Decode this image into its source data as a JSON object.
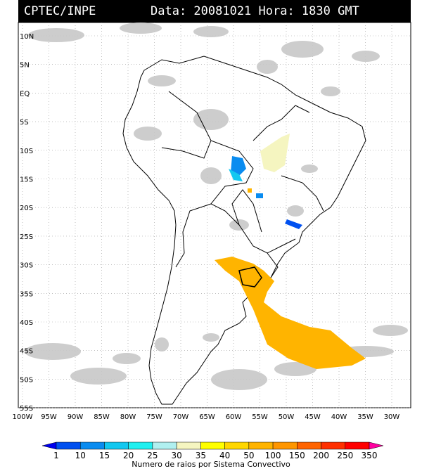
{
  "header": {
    "source": "CPTEC/INPE",
    "datetime": "Data: 20081021 Hora: 1830 GMT"
  },
  "axes": {
    "lat_labels": [
      "10N",
      "5N",
      "EQ",
      "5S",
      "10S",
      "15S",
      "20S",
      "25S",
      "30S",
      "35S",
      "40S",
      "45S",
      "50S",
      "55S"
    ],
    "lon_labels": [
      "100W",
      "95W",
      "90W",
      "85W",
      "80W",
      "75W",
      "70W",
      "65W",
      "60W",
      "55W",
      "50W",
      "45W",
      "40W",
      "35W",
      "30W"
    ]
  },
  "legend": {
    "title": "Numero de raios por Sistema Convectivo",
    "values": [
      "1",
      "10",
      "15",
      "20",
      "25",
      "30",
      "35",
      "40",
      "50",
      "100",
      "150",
      "200",
      "250",
      "350"
    ],
    "colors": [
      "#0000f0",
      "#0050f0",
      "#0a8cf0",
      "#12c8f0",
      "#20f0f0",
      "#b0f0f0",
      "#f5f5c0",
      "#ffff00",
      "#ffd700",
      "#ffb400",
      "#ff9600",
      "#ff6400",
      "#ff3000",
      "#ff0000",
      "#ff00a0"
    ]
  },
  "map": {
    "cloud_color": "#c8c8c8",
    "grid_color": "#999999"
  }
}
